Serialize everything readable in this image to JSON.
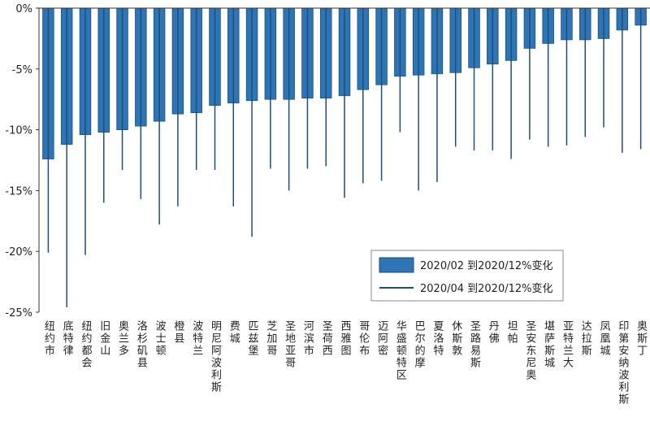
{
  "chart_data": {
    "type": "bar",
    "categories": [
      "纽约市",
      "底特律",
      "纽约都会",
      "旧金山",
      "奥兰多",
      "洛杉矶县",
      "波士顿",
      "橙县",
      "波特兰",
      "明尼阿波利斯",
      "费城",
      "匹兹堡",
      "芝加哥",
      "圣地亚哥",
      "河滨市",
      "圣荷西",
      "西雅图",
      "哥伦布",
      "迈阿密",
      "华盛顿特区",
      "巴尔的摩",
      "夏洛特",
      "休斯敦",
      "圣路易斯",
      "丹佛",
      "坦帕",
      "圣安东尼奥",
      "堪萨斯城",
      "亚特兰大",
      "达拉斯",
      "凤凰城",
      "印第安纳波利斯",
      "奥斯丁"
    ],
    "series": [
      {
        "name": "2020/02 到2020/12%变化",
        "color": "#2e75b6",
        "marker": "bar",
        "values": [
          -12.4,
          -11.2,
          -10.4,
          -10.2,
          -10.0,
          -9.7,
          -9.3,
          -8.7,
          -8.6,
          -8.0,
          -7.8,
          -7.6,
          -7.5,
          -7.5,
          -7.4,
          -7.4,
          -7.2,
          -6.7,
          -6.3,
          -5.6,
          -5.5,
          -5.4,
          -5.3,
          -4.9,
          -4.6,
          -4.3,
          -3.3,
          -2.9,
          -2.6,
          -2.6,
          -2.5,
          -1.8,
          -1.4
        ]
      },
      {
        "name": "2020/04 到2020/12%变化",
        "color": "#1f4e79",
        "marker": "line",
        "values": [
          -20.1,
          -24.6,
          -20.3,
          -16.0,
          -13.3,
          -15.7,
          -17.8,
          -16.3,
          -13.3,
          -13.3,
          -16.3,
          -18.8,
          -13.2,
          -15.0,
          -13.2,
          -13.0,
          -15.6,
          -14.4,
          -14.2,
          -10.2,
          -15.0,
          -14.3,
          -11.4,
          -11.7,
          -11.7,
          -12.4,
          -10.8,
          -11.4,
          -11.3,
          -10.6,
          -9.8,
          -11.9,
          -11.6
        ]
      }
    ],
    "ylim": [
      -25,
      0
    ],
    "yticks": [
      {
        "value": 0,
        "label": "0%"
      },
      {
        "value": -5,
        "label": "-5%"
      },
      {
        "value": -10,
        "label": "-10%"
      },
      {
        "value": -15,
        "label": "-15%"
      },
      {
        "value": -20,
        "label": "-20%"
      },
      {
        "value": -25,
        "label": "-25%"
      }
    ],
    "legend": "lower right"
  }
}
